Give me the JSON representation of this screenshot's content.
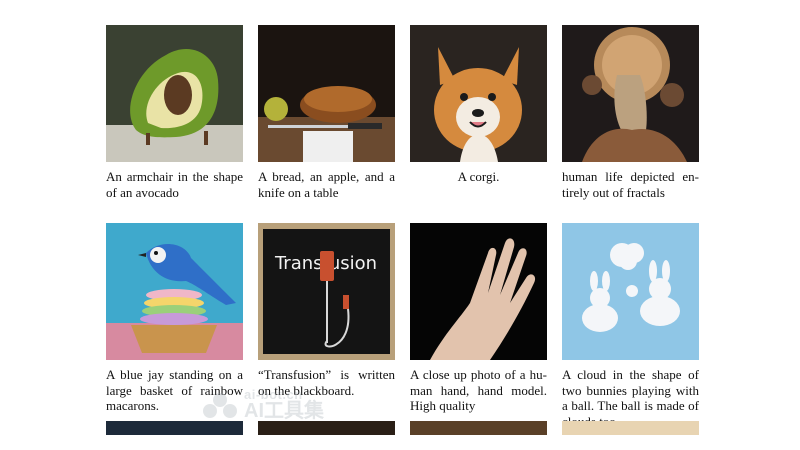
{
  "captions": [
    "An armchair in the shape of an avocado",
    "A bread, an apple, and a knife on a table",
    "A corgi.",
    "human life depicted en­tirely out of fractals",
    "A blue jay standing on a large basket of rainbow macarons.",
    "“Transfusion” is written on the blackboard.",
    "A close up photo of a hu­man hand, hand model. High quality",
    "A cloud in the shape of two bunnies playing with a ball. The ball is made of clouds too."
  ],
  "blackboard_text": "Transfusion",
  "watermark": {
    "url": "ai-bot.cn",
    "brand": "AI工具集"
  },
  "colors": {
    "avocado_green": "#6e9a2a",
    "blue_jay": "#2f6fc8",
    "sky_blue": "#8fc6e6"
  }
}
